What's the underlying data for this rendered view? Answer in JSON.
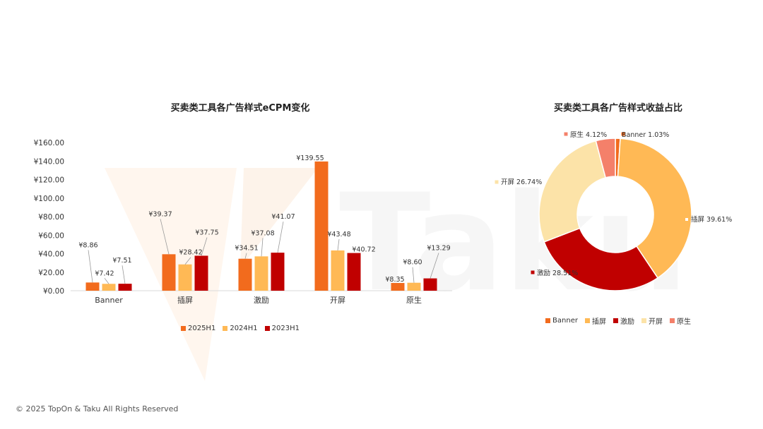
{
  "footer": "© 2025 TopOn & Taku All Rights Reserved",
  "colors": {
    "h2025": "#F26B1D",
    "h2024": "#FFB955",
    "h2023": "#C00000",
    "banner": "#F26B1D",
    "interstitial": "#FFB955",
    "rewarded": "#C00000",
    "splash": "#FCE3A8",
    "native": "#F4806A"
  },
  "chart_data": [
    {
      "type": "bar",
      "title": "买卖类工具各广告样式eCPM变化",
      "categories": [
        "Banner",
        "插屏",
        "激励",
        "开屏",
        "原生"
      ],
      "series": [
        {
          "name": "2025H1",
          "values": [
            8.86,
            39.37,
            34.51,
            139.55,
            8.35
          ]
        },
        {
          "name": "2024H1",
          "values": [
            7.42,
            28.42,
            37.08,
            43.48,
            8.6
          ]
        },
        {
          "name": "2023H1",
          "values": [
            7.51,
            37.75,
            41.07,
            40.72,
            13.29
          ]
        }
      ],
      "data_labels": [
        [
          "¥8.86",
          "¥39.37",
          "¥34.51",
          "¥139.55",
          "¥8.35"
        ],
        [
          "¥7.42",
          "¥28.42",
          "¥37.08",
          "¥43.48",
          "¥8.60"
        ],
        [
          "¥7.51",
          "¥37.75",
          "¥41.07",
          "¥40.72",
          "¥13.29"
        ]
      ],
      "yticks": [
        "¥0.00",
        "¥20.00",
        "¥40.00",
        "¥60.00",
        "¥80.00",
        "¥100.00",
        "¥120.00",
        "¥140.00",
        "¥160.00"
      ],
      "ylim": [
        0,
        160
      ],
      "legend_position": "bottom",
      "grid": false
    },
    {
      "type": "pie",
      "title": "买卖类工具各广告样式收益占比",
      "donut": true,
      "labels": [
        "Banner",
        "插屏",
        "激励",
        "开屏",
        "原生"
      ],
      "values": [
        1.03,
        39.61,
        28.51,
        26.74,
        4.12
      ],
      "slice_labels": [
        "Banner 1.03%",
        "插屏 39.61%",
        "激励 28.51%",
        "开屏 26.74%",
        "原生 4.12%"
      ],
      "legend_position": "bottom"
    }
  ]
}
